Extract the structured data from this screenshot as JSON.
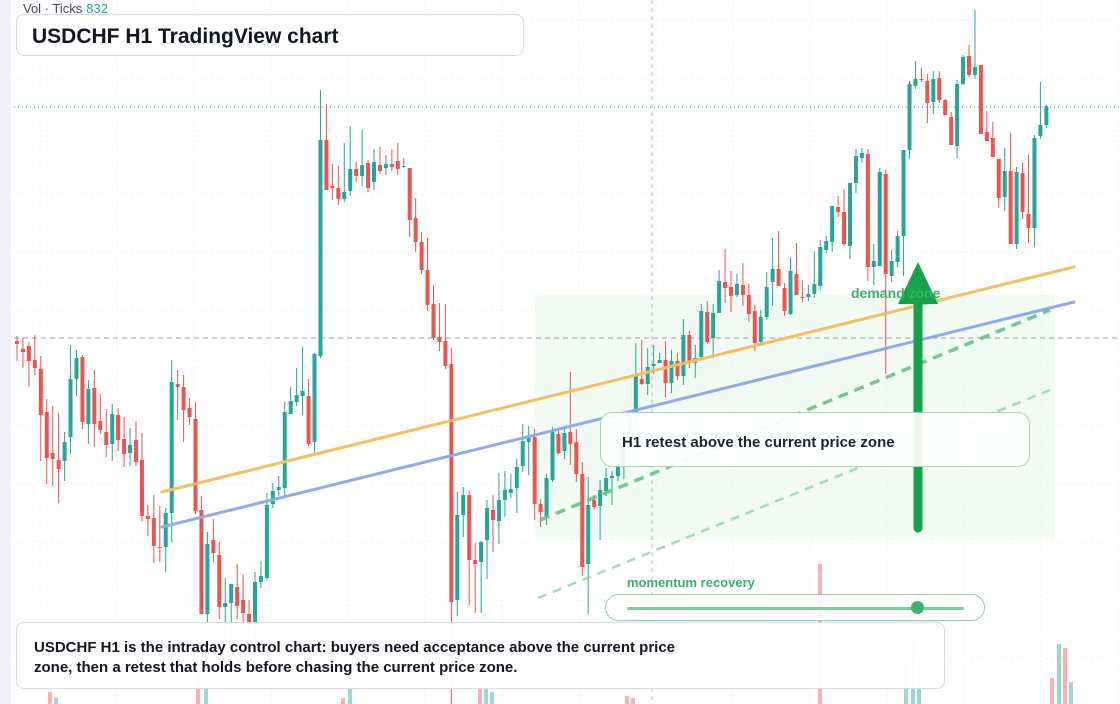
{
  "volume": {
    "label": "Vol · Ticks",
    "value": "832"
  },
  "title": "USDCHF H1 TradingView chart",
  "callout": "H1 retest above the current price zone",
  "demand_label": "demand zone",
  "momentum": {
    "label": "momentum recovery",
    "level": 0.86
  },
  "note": "USDCHF H1 is the intraday control chart: buyers need acceptance above the current price zone, then a retest that holds before chasing the current price zone.",
  "colors": {
    "bull": "#26a69a",
    "bear": "#ef5350",
    "accent_green": "#38b26a",
    "trend_orange": "#f5bf5f",
    "trend_blue": "#8fabee"
  },
  "chart_data": {
    "type": "candlestick",
    "symbol": "USDCHF",
    "timeframe": "H1",
    "candles_ohlc": [
      [
        341,
        361,
        336,
        344
      ],
      [
        349,
        368,
        338,
        352
      ],
      [
        346,
        387,
        342,
        361
      ],
      [
        360,
        375,
        335,
        368
      ],
      [
        369,
        461,
        356,
        415
      ],
      [
        412,
        484,
        399,
        458
      ],
      [
        453,
        486,
        406,
        459
      ],
      [
        460,
        503,
        413,
        469
      ],
      [
        461,
        481,
        432,
        442
      ],
      [
        437,
        454,
        345,
        379
      ],
      [
        379,
        396,
        350,
        358
      ],
      [
        357,
        429,
        355,
        422
      ],
      [
        424,
        444,
        380,
        389
      ],
      [
        388,
        447,
        370,
        424
      ],
      [
        421,
        434,
        394,
        430
      ],
      [
        432,
        457,
        409,
        445
      ],
      [
        444,
        461,
        404,
        414
      ],
      [
        415,
        451,
        408,
        440
      ],
      [
        439,
        467,
        417,
        454
      ],
      [
        453,
        466,
        428,
        445
      ],
      [
        440,
        466,
        421,
        462
      ],
      [
        460,
        521,
        433,
        516
      ],
      [
        516,
        536,
        505,
        519
      ],
      [
        518,
        563,
        495,
        546
      ],
      [
        547,
        562,
        506,
        547
      ],
      [
        547,
        572,
        508,
        513
      ],
      [
        513,
        542,
        360,
        382
      ],
      [
        384,
        420,
        370,
        387
      ],
      [
        387,
        442,
        375,
        410
      ],
      [
        408,
        425,
        398,
        417
      ],
      [
        419,
        514,
        402,
        511
      ],
      [
        510,
        611,
        496,
        614
      ],
      [
        614,
        624,
        532,
        544
      ],
      [
        540,
        562,
        519,
        553
      ],
      [
        555,
        619,
        542,
        607
      ],
      [
        607,
        645,
        578,
        603
      ],
      [
        603,
        639,
        584,
        584
      ],
      [
        587,
        619,
        564,
        606
      ],
      [
        600,
        626,
        574,
        613
      ],
      [
        614,
        633,
        600,
        624
      ],
      [
        622,
        656,
        572,
        582
      ],
      [
        582,
        588,
        561,
        576
      ],
      [
        578,
        580,
        493,
        505
      ],
      [
        504,
        508,
        483,
        491
      ],
      [
        490,
        496,
        476,
        487
      ],
      [
        488,
        496,
        402,
        412
      ],
      [
        414,
        414,
        387,
        401
      ],
      [
        402,
        406,
        368,
        395
      ],
      [
        396,
        415,
        347,
        391
      ],
      [
        396,
        446,
        379,
        444
      ],
      [
        442,
        454,
        353,
        354
      ],
      [
        356,
        358,
        90,
        140
      ],
      [
        140,
        183,
        104,
        190
      ],
      [
        186,
        200,
        164,
        188
      ],
      [
        188,
        205,
        166,
        199
      ],
      [
        199,
        202,
        143,
        192
      ],
      [
        191,
        196,
        126,
        169
      ],
      [
        169,
        182,
        162,
        176
      ],
      [
        176,
        186,
        130,
        165
      ],
      [
        163,
        192,
        160,
        188
      ],
      [
        182,
        190,
        149,
        162
      ],
      [
        165,
        174,
        147,
        171
      ],
      [
        168,
        175,
        155,
        164
      ],
      [
        164,
        171,
        149,
        167
      ],
      [
        161,
        175,
        143,
        169
      ],
      [
        167,
        168,
        158,
        166
      ],
      [
        168,
        237,
        168,
        220
      ],
      [
        218,
        252,
        198,
        242
      ],
      [
        242,
        274,
        232,
        270
      ],
      [
        270,
        311,
        238,
        305
      ],
      [
        304,
        340,
        285,
        338
      ],
      [
        337,
        351,
        303,
        342
      ],
      [
        341,
        369,
        304,
        366
      ],
      [
        364,
        704,
        348,
        602
      ],
      [
        600,
        616,
        492,
        515
      ],
      [
        515,
        537,
        487,
        495
      ],
      [
        495,
        605,
        491,
        560
      ],
      [
        560,
        613,
        543,
        564
      ],
      [
        562,
        613,
        541,
        542
      ],
      [
        540,
        579,
        500,
        508
      ],
      [
        510,
        552,
        495,
        520
      ],
      [
        521,
        544,
        473,
        500
      ],
      [
        500,
        517,
        471,
        490
      ],
      [
        493,
        498,
        474,
        489
      ],
      [
        488,
        513,
        459,
        467
      ],
      [
        466,
        472,
        424,
        441
      ],
      [
        442,
        475,
        426,
        437
      ],
      [
        437,
        520,
        429,
        504
      ],
      [
        504,
        527,
        499,
        512
      ],
      [
        516,
        525,
        474,
        478
      ],
      [
        480,
        482,
        427,
        432
      ],
      [
        434,
        454,
        428,
        453
      ],
      [
        451,
        459,
        426,
        433
      ],
      [
        432,
        465,
        372,
        444
      ],
      [
        442,
        482,
        429,
        474
      ],
      [
        474,
        576,
        462,
        567
      ],
      [
        564,
        614,
        477,
        505
      ],
      [
        500,
        509,
        495,
        507
      ],
      [
        506,
        540,
        480,
        490
      ],
      [
        491,
        496,
        468,
        478
      ],
      [
        478,
        505,
        471,
        476
      ],
      [
        476,
        481,
        447,
        467
      ],
      [
        467,
        479,
        423,
        432
      ],
      [
        433,
        461,
        412,
        416
      ],
      [
        417,
        448,
        343,
        375
      ],
      [
        379,
        385,
        340,
        384
      ],
      [
        384,
        395,
        348,
        367
      ],
      [
        366,
        374,
        345,
        364
      ],
      [
        363,
        363,
        353,
        360
      ],
      [
        360,
        397,
        341,
        383
      ],
      [
        383,
        393,
        350,
        361
      ],
      [
        361,
        380,
        353,
        376
      ],
      [
        376,
        385,
        319,
        335
      ],
      [
        335,
        368,
        331,
        362
      ],
      [
        363,
        378,
        345,
        358
      ],
      [
        357,
        358,
        304,
        311
      ],
      [
        312,
        344,
        301,
        342
      ],
      [
        338,
        358,
        304,
        313
      ],
      [
        313,
        313,
        270,
        281
      ],
      [
        282,
        303,
        249,
        288
      ],
      [
        287,
        312,
        271,
        296
      ],
      [
        295,
        297,
        274,
        284
      ],
      [
        285,
        306,
        263,
        295
      ],
      [
        295,
        322,
        284,
        314
      ],
      [
        311,
        351,
        305,
        343
      ],
      [
        342,
        346,
        310,
        317
      ],
      [
        317,
        319,
        272,
        287
      ],
      [
        282,
        306,
        238,
        269
      ],
      [
        269,
        278,
        231,
        286
      ],
      [
        288,
        316,
        283,
        311
      ],
      [
        314,
        315,
        257,
        271
      ],
      [
        274,
        289,
        243,
        295
      ],
      [
        297,
        302,
        280,
        298
      ],
      [
        297,
        301,
        285,
        294
      ],
      [
        294,
        298,
        251,
        284
      ],
      [
        286,
        290,
        240,
        247
      ],
      [
        250,
        253,
        236,
        241
      ],
      [
        242,
        252,
        207,
        206
      ],
      [
        207,
        217,
        196,
        212
      ],
      [
        212,
        246,
        189,
        244
      ],
      [
        246,
        259,
        184,
        183
      ],
      [
        183,
        193,
        149,
        156
      ],
      [
        158,
        163,
        148,
        153
      ],
      [
        154,
        281,
        149,
        267
      ],
      [
        267,
        285,
        244,
        261
      ],
      [
        266,
        263,
        168,
        172
      ],
      [
        174,
        374,
        170,
        274
      ],
      [
        276,
        282,
        250,
        261
      ],
      [
        262,
        267,
        231,
        236
      ],
      [
        236,
        276,
        151,
        150
      ],
      [
        150,
        159,
        81,
        84
      ],
      [
        86,
        89,
        61,
        79
      ],
      [
        79,
        82,
        68,
        79
      ],
      [
        81,
        123,
        74,
        103
      ],
      [
        102,
        114,
        71,
        79
      ],
      [
        78,
        103,
        71,
        100
      ],
      [
        100,
        114,
        99,
        115
      ],
      [
        117,
        121,
        112,
        145
      ],
      [
        146,
        158,
        80,
        84
      ],
      [
        84,
        85,
        55,
        57
      ],
      [
        56,
        77,
        45,
        75
      ],
      [
        75,
        79,
        10,
        67
      ],
      [
        65,
        76,
        69,
        134
      ],
      [
        132,
        140,
        111,
        141
      ],
      [
        138,
        147,
        122,
        157
      ],
      [
        159,
        208,
        159,
        198
      ],
      [
        197,
        211,
        148,
        171
      ],
      [
        171,
        192,
        133,
        244
      ],
      [
        244,
        249,
        167,
        172
      ],
      [
        173,
        219,
        162,
        212
      ],
      [
        214,
        243,
        155,
        228
      ],
      [
        228,
        247,
        135,
        138
      ],
      [
        136,
        139,
        82,
        125
      ],
      [
        125,
        128,
        105,
        106
      ]
    ],
    "candle_color_rule": "close < open → bullish (green); else bearish (red)",
    "trendlines": [
      {
        "name": "orange",
        "from": [
          0.145,
          492
        ],
        "to": [
          0.96,
          267
        ]
      },
      {
        "name": "blue",
        "from": [
          0.145,
          527
        ],
        "to": [
          0.96,
          302
        ]
      }
    ],
    "horizontal_lines": [
      107,
      338
    ],
    "volume_bars": [
      {
        "x": 50,
        "h": 12,
        "c": "bear"
      },
      {
        "x": 56,
        "h": 6,
        "c": "bull"
      },
      {
        "x": 198,
        "h": 28,
        "c": "bear"
      },
      {
        "x": 206,
        "h": 18,
        "c": "bull"
      },
      {
        "x": 350,
        "h": 18,
        "c": "bull"
      },
      {
        "x": 343,
        "h": 6,
        "c": "bear"
      },
      {
        "x": 480,
        "h": 15,
        "c": "bear"
      },
      {
        "x": 486,
        "h": 22,
        "c": "bull"
      },
      {
        "x": 492,
        "h": 12,
        "c": "bull"
      },
      {
        "x": 627,
        "h": 8,
        "c": "bear"
      },
      {
        "x": 633,
        "h": 6,
        "c": "bear"
      },
      {
        "x": 820,
        "h": 140,
        "c": "bear"
      },
      {
        "x": 906,
        "h": 40,
        "c": "bull"
      },
      {
        "x": 913,
        "h": 60,
        "c": "bull"
      },
      {
        "x": 919,
        "h": 44,
        "c": "bull"
      },
      {
        "x": 1052,
        "h": 26,
        "c": "bear"
      },
      {
        "x": 1059,
        "h": 60,
        "c": "bull"
      },
      {
        "x": 1065,
        "h": 56,
        "c": "bear"
      },
      {
        "x": 1071,
        "h": 22,
        "c": "bull"
      }
    ]
  }
}
